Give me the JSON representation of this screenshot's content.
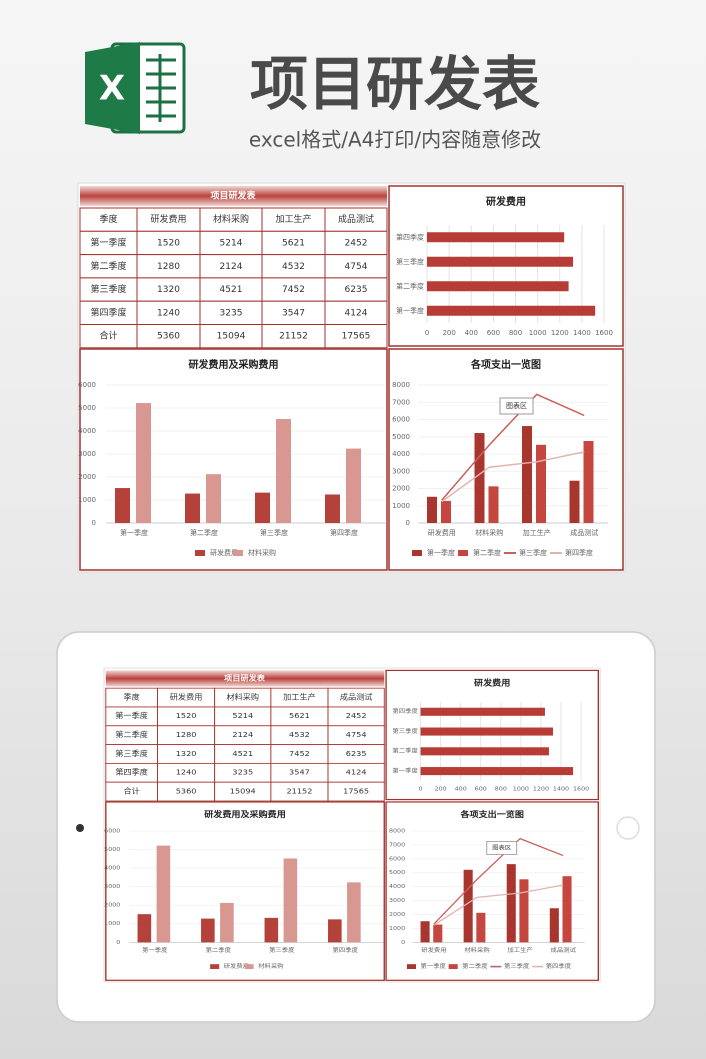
{
  "header": {
    "logo_text": "X",
    "title": "项目研发表",
    "subtitle": "excel格式/A4打印/内容随意修改"
  },
  "table": {
    "title": "项目研发表",
    "header": [
      "季度",
      "研发费用",
      "材料采购",
      "加工生产",
      "成品测试"
    ],
    "rows": [
      [
        "第一季度",
        "1520",
        "5214",
        "5621",
        "2452"
      ],
      [
        "第二季度",
        "1280",
        "2124",
        "4532",
        "4754"
      ],
      [
        "第三季度",
        "1320",
        "4521",
        "7452",
        "6235"
      ],
      [
        "第四季度",
        "1240",
        "3235",
        "3547",
        "4124"
      ],
      [
        "合计",
        "5360",
        "15094",
        "21152",
        "17565"
      ]
    ]
  },
  "chart_data": [
    {
      "type": "bar",
      "orientation": "horizontal",
      "title": "研发费用",
      "categories": [
        "第一季度",
        "第二季度",
        "第三季度",
        "第四季度"
      ],
      "values": [
        1520,
        1280,
        1320,
        1240
      ],
      "color": "#b83c36",
      "xlim": [
        0,
        1600
      ],
      "xticks": [
        0,
        200,
        400,
        600,
        800,
        1000,
        1200,
        1400,
        1600
      ],
      "grid": true
    },
    {
      "type": "bar",
      "title": "研发费用及采购费用",
      "categories": [
        "第一季度",
        "第二季度",
        "第三季度",
        "第四季度"
      ],
      "series": [
        {
          "name": "研发费用",
          "color": "#b5413b",
          "values": [
            1520,
            1280,
            1320,
            1240
          ]
        },
        {
          "name": "材料采购",
          "color": "#d99792",
          "values": [
            5214,
            2124,
            4521,
            3235
          ]
        }
      ],
      "ylim": [
        0,
        6000
      ],
      "yticks": [
        0,
        1000,
        2000,
        3000,
        4000,
        5000,
        6000
      ],
      "grid": true
    },
    {
      "type": "combo",
      "title": "各项支出一览图",
      "annotation": "图表区",
      "categories": [
        "研发费用",
        "材料采购",
        "加工生产",
        "成品测试"
      ],
      "series": [
        {
          "name": "第一季度",
          "kind": "bar",
          "color": "#a8362f",
          "values": [
            1520,
            5214,
            5621,
            2452
          ]
        },
        {
          "name": "第二季度",
          "kind": "bar",
          "color": "#c4463f",
          "values": [
            1280,
            2124,
            4532,
            4754
          ]
        },
        {
          "name": "第三季度",
          "kind": "line",
          "color": "#c9605a",
          "values": [
            1320,
            4521,
            7452,
            6235
          ]
        },
        {
          "name": "第四季度",
          "kind": "line",
          "color": "#e3b3af",
          "values": [
            1240,
            3235,
            3547,
            4124
          ]
        }
      ],
      "ylim": [
        0,
        8000
      ],
      "yticks": [
        0,
        1000,
        2000,
        3000,
        4000,
        5000,
        6000,
        7000,
        8000
      ],
      "grid": true
    }
  ]
}
